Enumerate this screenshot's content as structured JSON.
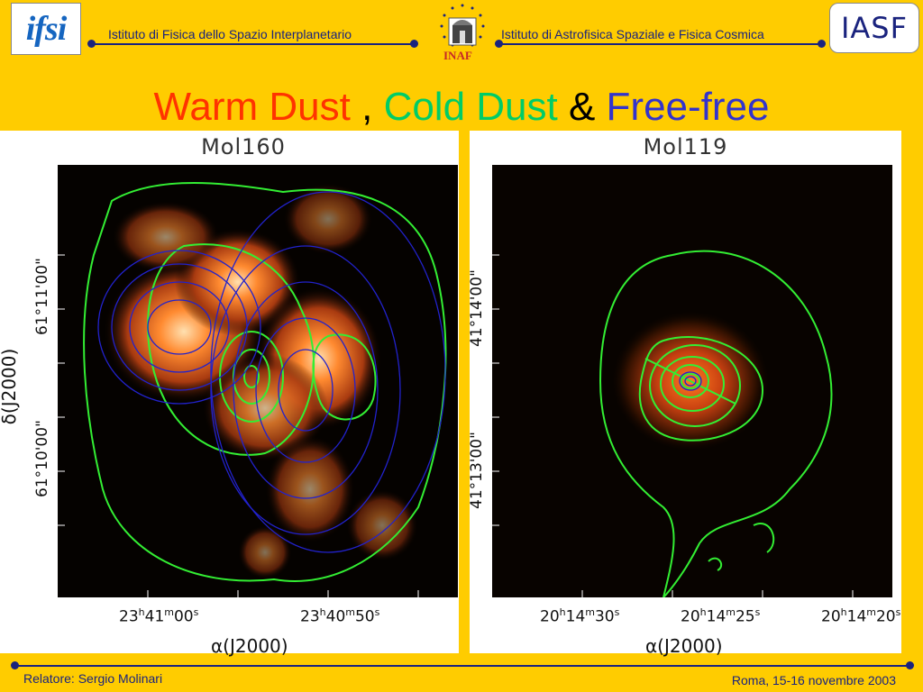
{
  "header": {
    "left_logo_text": "ifsi",
    "left_label": "Istituto di Fisica dello Spazio Interplanetario",
    "center_logo_text": "INAF",
    "right_label": "Istituto di Astrofisica Spaziale e Fisica Cosmica",
    "right_logo_text": "IASF"
  },
  "title": {
    "part1": "Warm Dust",
    "sep1": " , ",
    "part2": "Cold Dust",
    "sep2": " & ",
    "part3": "Free-free",
    "colors": {
      "warm": "#ff3300",
      "cold": "#00cc66",
      "amp": "#000000",
      "free": "#3333cc"
    }
  },
  "panels": [
    {
      "name": "Mol160",
      "x_ticks": [
        "23h41m00s",
        "23h40m50s"
      ],
      "y_ticks": [
        "61°11'00\"",
        "61°10'00\""
      ],
      "x_axis": "α(J2000)",
      "y_axis": "δ(J2000)"
    },
    {
      "name": "Mol119",
      "x_ticks": [
        "20h14m30s",
        "20h14m25s",
        "20h14m20s"
      ],
      "y_ticks": [
        "41°14'00\"",
        "41°13'00\""
      ],
      "x_axis": "α(J2000)",
      "y_axis": ""
    }
  ],
  "tick_parts": {
    "p1x0": {
      "h": "23",
      "m": "41",
      "s": "00"
    },
    "p1x1": {
      "h": "23",
      "m": "40",
      "s": "50"
    },
    "p2x0": {
      "h": "20",
      "m": "14",
      "s": "30"
    },
    "p2x1": {
      "h": "20",
      "m": "14",
      "s": "25"
    },
    "p2x2": {
      "h": "20",
      "m": "14",
      "s": "20"
    }
  },
  "footer": {
    "left": "Relatore: Sergio Molinari",
    "right": "Roma, 15-16 novembre 2003"
  }
}
